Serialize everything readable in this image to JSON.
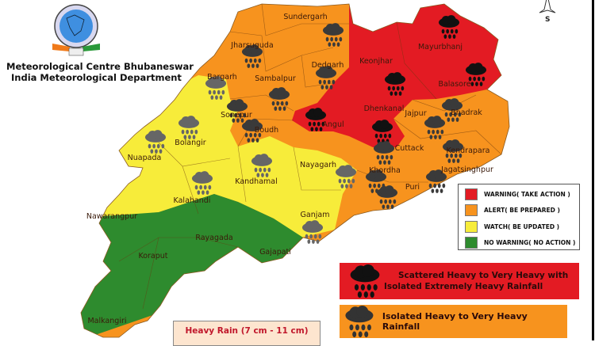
{
  "header": {
    "line1": "Meteorological Centre Bhubaneswar",
    "line2": "India Meteorological Department",
    "logo_icon": "imd-emblem-icon"
  },
  "compass": {
    "label": "S",
    "icon": "north-arrow-icon"
  },
  "colors": {
    "warning": "#e31b23",
    "alert": "#f7931e",
    "watch": "#f7ec3a",
    "no_warning": "#2e8b2e"
  },
  "districts": [
    {
      "name": "Sundergarh",
      "level": "alert",
      "cloud": "grey"
    },
    {
      "name": "Jharsuguda",
      "level": "alert",
      "cloud": "grey"
    },
    {
      "name": "Dedgarh",
      "level": "alert",
      "cloud": "grey"
    },
    {
      "name": "Keonjhar",
      "level": "warning",
      "cloud": "black"
    },
    {
      "name": "Mayurbhanj",
      "level": "warning",
      "cloud": "black"
    },
    {
      "name": "Bargarh",
      "level": "watch",
      "cloud": "light"
    },
    {
      "name": "Sambalpur",
      "level": "alert",
      "cloud": "grey"
    },
    {
      "name": "Balasore",
      "level": "warning",
      "cloud": "black"
    },
    {
      "name": "Sonepur",
      "level": "alert",
      "cloud": "grey"
    },
    {
      "name": "Dhenkanal",
      "level": "warning",
      "cloud": "black"
    },
    {
      "name": "Jajpur",
      "level": "alert",
      "cloud": "grey"
    },
    {
      "name": "Bhadrak",
      "level": "alert",
      "cloud": "grey"
    },
    {
      "name": "Angul",
      "level": "warning",
      "cloud": "black"
    },
    {
      "name": "Boudh",
      "level": "alert",
      "cloud": "grey"
    },
    {
      "name": "Bolangir",
      "level": "watch",
      "cloud": "light"
    },
    {
      "name": "Cuttack",
      "level": "alert",
      "cloud": "grey"
    },
    {
      "name": "Kendrapara",
      "level": "alert",
      "cloud": "grey"
    },
    {
      "name": "Nuapada",
      "level": "watch",
      "cloud": "light"
    },
    {
      "name": "Nayagarh",
      "level": "watch",
      "cloud": "light"
    },
    {
      "name": "Kandhamal",
      "level": "watch",
      "cloud": "light"
    },
    {
      "name": "Khordha",
      "level": "alert",
      "cloud": "grey"
    },
    {
      "name": "Jagatsinghpur",
      "level": "alert",
      "cloud": "grey"
    },
    {
      "name": "Kalahandi",
      "level": "watch",
      "cloud": "light"
    },
    {
      "name": "Puri",
      "level": "alert",
      "cloud": "grey"
    },
    {
      "name": "Ganjam",
      "level": "watch",
      "cloud": "light"
    },
    {
      "name": "Nawarangpur",
      "level": "no_warning",
      "cloud": ""
    },
    {
      "name": "Rayagada",
      "level": "no_warning",
      "cloud": ""
    },
    {
      "name": "Gajapati",
      "level": "no_warning",
      "cloud": ""
    },
    {
      "name": "Koraput",
      "level": "no_warning",
      "cloud": ""
    },
    {
      "name": "Malkangiri",
      "level": "no_warning",
      "cloud": ""
    }
  ],
  "legend": {
    "items": [
      {
        "label": "WARNING( TAKE ACTION )",
        "color": "#e31b23"
      },
      {
        "label": "ALERT( BE PREPARED )",
        "color": "#f7931e"
      },
      {
        "label": "WATCH( BE UPDATED )",
        "color": "#f7ec3a"
      },
      {
        "label": "NO WARNING( NO ACTION )",
        "color": "#2e8b2e"
      }
    ]
  },
  "banners": {
    "red_line1": "Scattered Heavy to Very Heavy with",
    "red_line2": "Isolated Extremely Heavy Rainfall",
    "orange": "Isolated  Heavy to Very Heavy Rainfall",
    "heavy_rain": "Heavy Rain (7 cm - 11 cm)"
  }
}
